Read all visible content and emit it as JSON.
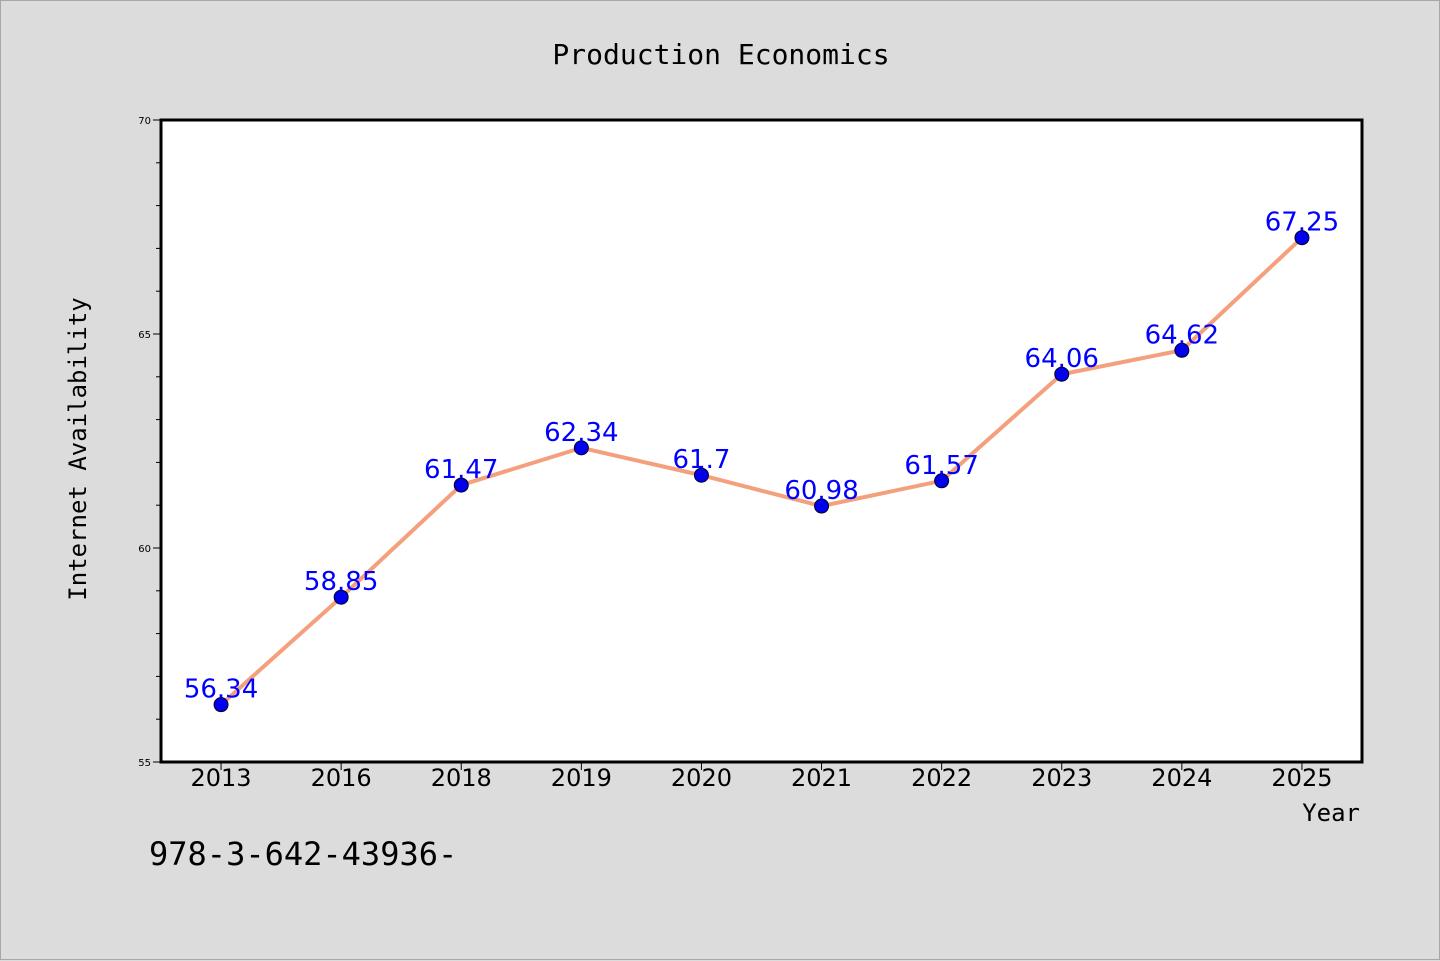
{
  "chart_data": {
    "type": "line",
    "title": "Production Economics",
    "xlabel": "Year",
    "ylabel": "Internet Availability",
    "categories": [
      "2013",
      "2016",
      "2018",
      "2019",
      "2020",
      "2021",
      "2022",
      "2023",
      "2024",
      "2025"
    ],
    "values": [
      56.34,
      58.85,
      61.47,
      62.34,
      61.7,
      60.98,
      61.57,
      64.06,
      64.62,
      67.25
    ],
    "data_labels": [
      "56.34",
      "58.85",
      "61.47",
      "62.34",
      "61.7",
      "60.98",
      "61.57",
      "64.06",
      "64.62",
      "67.25"
    ],
    "ylim": [
      55,
      70
    ],
    "yticks": [
      "55",
      "60",
      "65",
      "70"
    ],
    "grid": false,
    "line_color": "#f4a07c",
    "marker_color": "#0000ee",
    "label_color": "#0000ff",
    "background_color": "#dcdcdc",
    "plot_background": "#ffffff"
  },
  "annotation": "978-3-642-43936-"
}
